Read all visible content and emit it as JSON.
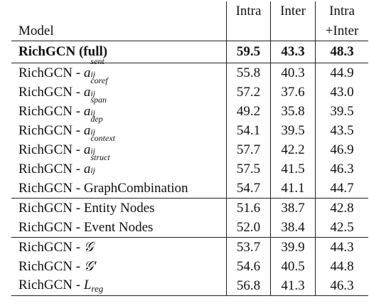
{
  "header": {
    "model": "Model",
    "intra": "Intra",
    "inter": "Inter",
    "intra_inter_1": "Intra",
    "intra_inter_2": "+Inter"
  },
  "full_row": {
    "model": "RichGCN (full)",
    "intra": "59.5",
    "inter": "43.3",
    "intra_inter": "48.3"
  },
  "ablation_rows": [
    {
      "prefix": "RichGCN - ",
      "var": "a",
      "sup": "sent",
      "sub": "ij",
      "intra": "55.8",
      "inter": "40.3",
      "intra_inter": "44.9"
    },
    {
      "prefix": "RichGCN - ",
      "var": "a",
      "sup": "coref",
      "sub": "ij",
      "intra": "57.2",
      "inter": "37.6",
      "intra_inter": "43.0"
    },
    {
      "prefix": "RichGCN - ",
      "var": "a",
      "sup": "span",
      "sub": "ij",
      "intra": "49.2",
      "inter": "35.8",
      "intra_inter": "39.5"
    },
    {
      "prefix": "RichGCN - ",
      "var": "a",
      "sup": "dep",
      "sub": "ij",
      "intra": "54.1",
      "inter": "39.5",
      "intra_inter": "43.5"
    },
    {
      "prefix": "RichGCN - ",
      "var": "a",
      "sup": "context",
      "sub": "ij",
      "intra": "57.7",
      "inter": "42.2",
      "intra_inter": "46.9"
    },
    {
      "prefix": "RichGCN - ",
      "var": "a",
      "sup": "struct",
      "sub": "ij",
      "intra": "57.5",
      "inter": "41.5",
      "intra_inter": "46.3"
    }
  ],
  "graph_combination_row": {
    "model": "RichGCN - GraphCombination",
    "intra": "54.7",
    "inter": "41.1",
    "intra_inter": "44.7"
  },
  "node_rows": [
    {
      "model": "RichGCN - Entity Nodes",
      "intra": "51.6",
      "inter": "38.7",
      "intra_inter": "42.8"
    },
    {
      "model": "RichGCN - Event Nodes",
      "intra": "52.0",
      "inter": "38.4",
      "intra_inter": "42.5"
    }
  ],
  "graph_rows": [
    {
      "prefix": "RichGCN - ",
      "math": "𝒢",
      "intra": "53.7",
      "inter": "39.9",
      "intra_inter": "44.3"
    },
    {
      "prefix": "RichGCN - ",
      "math": "𝒢′",
      "intra": "54.6",
      "inter": "40.5",
      "intra_inter": "44.8"
    },
    {
      "prefix": "RichGCN - ",
      "math": "L",
      "math_sub": "reg",
      "intra": "56.8",
      "inter": "41.3",
      "intra_inter": "46.3"
    }
  ]
}
